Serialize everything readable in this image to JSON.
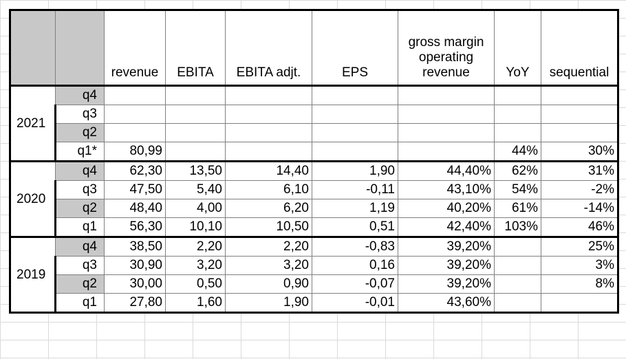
{
  "headers": [
    "",
    "",
    "revenue",
    "EBITA",
    "EBITA adjt.",
    "EPS",
    "gross margin operating revenue",
    "YoY",
    "sequential"
  ],
  "header_lines": {
    "gross": [
      "gross margin",
      "operating",
      "revenue"
    ]
  },
  "years": [
    {
      "year": "2021",
      "rows": [
        {
          "q": "q4",
          "gray": true,
          "revenue": "",
          "ebita": "",
          "ebita_adj": "",
          "eps": "",
          "gm": "",
          "yoy": "",
          "seq": ""
        },
        {
          "q": "q3",
          "gray": false,
          "revenue": "",
          "ebita": "",
          "ebita_adj": "",
          "eps": "",
          "gm": "",
          "yoy": "",
          "seq": ""
        },
        {
          "q": "q2",
          "gray": true,
          "revenue": "",
          "ebita": "",
          "ebita_adj": "",
          "eps": "",
          "gm": "",
          "yoy": "",
          "seq": ""
        },
        {
          "q": "q1*",
          "gray": false,
          "revenue": "80,99",
          "ebita": "",
          "ebita_adj": "",
          "eps": "",
          "gm": "",
          "yoy": "44%",
          "seq": "30%"
        }
      ]
    },
    {
      "year": "2020",
      "rows": [
        {
          "q": "q4",
          "gray": true,
          "revenue": "62,30",
          "ebita": "13,50",
          "ebita_adj": "14,40",
          "eps": "1,90",
          "gm": "44,40%",
          "yoy": "62%",
          "seq": "31%"
        },
        {
          "q": "q3",
          "gray": false,
          "revenue": "47,50",
          "ebita": "5,40",
          "ebita_adj": "6,10",
          "eps": "-0,11",
          "gm": "43,10%",
          "yoy": "54%",
          "seq": "-2%"
        },
        {
          "q": "q2",
          "gray": true,
          "revenue": "48,40",
          "ebita": "4,00",
          "ebita_adj": "6,20",
          "eps": "1,19",
          "gm": "40,20%",
          "yoy": "61%",
          "seq": "-14%"
        },
        {
          "q": "q1",
          "gray": false,
          "revenue": "56,30",
          "ebita": "10,10",
          "ebita_adj": "10,50",
          "eps": "0,51",
          "gm": "42,40%",
          "yoy": "103%",
          "seq": "46%"
        }
      ]
    },
    {
      "year": "2019",
      "rows": [
        {
          "q": "q4",
          "gray": true,
          "revenue": "38,50",
          "ebita": "2,20",
          "ebita_adj": "2,20",
          "eps": "-0,83",
          "gm": "39,20%",
          "yoy": "",
          "seq": "25%"
        },
        {
          "q": "q3",
          "gray": false,
          "revenue": "30,90",
          "ebita": "3,20",
          "ebita_adj": "3,20",
          "eps": "0,16",
          "gm": "39,20%",
          "yoy": "",
          "seq": "3%"
        },
        {
          "q": "q2",
          "gray": true,
          "revenue": "30,00",
          "ebita": "0,50",
          "ebita_adj": "0,90",
          "eps": "-0,07",
          "gm": "39,20%",
          "yoy": "",
          "seq": "8%"
        },
        {
          "q": "q1",
          "gray": false,
          "revenue": "27,80",
          "ebita": "1,60",
          "ebita_adj": "1,90",
          "eps": "-0,01",
          "gm": "43,60%",
          "yoy": "",
          "seq": ""
        }
      ]
    }
  ],
  "colors": {
    "gray_fill": "#c8c8c8",
    "grid": "#dadada",
    "border": "#000000"
  }
}
